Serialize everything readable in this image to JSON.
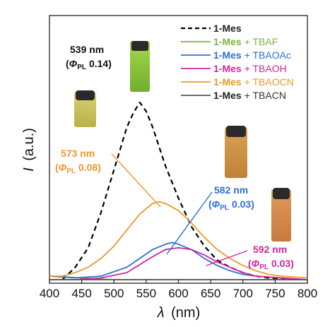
{
  "chart_data": {
    "type": "line",
    "xlabel_symbol": "λ",
    "xlabel_unit": "(nm)",
    "ylabel_symbol": "I",
    "ylabel_unit": "(a.u.)",
    "xlim": [
      400,
      800
    ],
    "x_ticks": [
      400,
      450,
      500,
      550,
      600,
      650,
      700,
      750,
      800
    ],
    "ylim": [
      0,
      1.15
    ],
    "series": [
      {
        "compound": "1-Mes",
        "additive": "",
        "color": "#000000",
        "style": "dashed",
        "x": [
          420,
          440,
          460,
          480,
          500,
          520,
          530,
          540,
          550,
          560,
          580,
          600,
          620,
          640,
          660,
          680,
          700,
          720,
          740,
          760,
          780
        ],
        "y": [
          0.0,
          0.07,
          0.18,
          0.38,
          0.62,
          0.86,
          0.94,
          1.0,
          0.95,
          0.86,
          0.64,
          0.46,
          0.3,
          0.19,
          0.11,
          0.07,
          0.04,
          0.02,
          0.01,
          0.005,
          0.0
        ]
      },
      {
        "compound": "1-Mes",
        "additive": "+ TBAF",
        "color": "#7cb342",
        "style": "solid",
        "x": [
          400,
          500,
          600,
          700,
          800
        ],
        "y": [
          0.02,
          0.0,
          0.0,
          0.0,
          0.0
        ]
      },
      {
        "compound": "1-Mes",
        "additive": "+ TBAOAc",
        "color": "#2e6fd6",
        "style": "solid",
        "x": [
          400,
          440,
          480,
          520,
          540,
          560,
          580,
          590,
          600,
          620,
          640,
          660,
          680,
          700,
          720,
          760,
          800
        ],
        "y": [
          0.02,
          0.01,
          0.02,
          0.07,
          0.12,
          0.17,
          0.2,
          0.21,
          0.2,
          0.17,
          0.12,
          0.08,
          0.05,
          0.03,
          0.02,
          0.01,
          0.0
        ]
      },
      {
        "compound": "1-Mes",
        "additive": "+ TBAOH",
        "color": "#d6249a",
        "style": "solid",
        "x": [
          400,
          440,
          480,
          520,
          560,
          580,
          600,
          620,
          640,
          660,
          680,
          700,
          720,
          760,
          800
        ],
        "y": [
          0.0,
          0.0,
          0.01,
          0.04,
          0.13,
          0.17,
          0.18,
          0.17,
          0.14,
          0.1,
          0.07,
          0.04,
          0.02,
          0.01,
          0.0
        ]
      },
      {
        "compound": "1-Mes",
        "additive": "+ TBAOCN",
        "color": "#f0962e",
        "style": "solid",
        "x": [
          400,
          420,
          440,
          460,
          480,
          500,
          520,
          540,
          560,
          570,
          580,
          600,
          620,
          640,
          660,
          680,
          700,
          720,
          740,
          760,
          800
        ],
        "y": [
          0.02,
          0.02,
          0.04,
          0.07,
          0.12,
          0.19,
          0.28,
          0.37,
          0.43,
          0.44,
          0.43,
          0.39,
          0.32,
          0.24,
          0.17,
          0.12,
          0.08,
          0.05,
          0.03,
          0.02,
          0.01
        ]
      },
      {
        "compound": "1-Mes",
        "additive": "+ TBACN",
        "color": "#555555",
        "style": "solid",
        "x": [
          400,
          600,
          800
        ],
        "y": [
          0.0,
          0.0,
          0.0
        ]
      }
    ],
    "annotations": [
      {
        "line1": "539 nm",
        "phi_sym": "Φ",
        "phi_sub": "PL",
        "phi_val": "0.14",
        "color": "#111111"
      },
      {
        "line1": "573 nm",
        "phi_sym": "Φ",
        "phi_sub": "PL",
        "phi_val": "0.08",
        "color": "#f0962e"
      },
      {
        "line1": "582 nm",
        "phi_sym": "Φ",
        "phi_sub": "PL",
        "phi_val": "0.03",
        "color": "#2e6fd6"
      },
      {
        "line1": "592 nm",
        "phi_sym": "Φ",
        "phi_sub": "PL",
        "phi_val": "0.03",
        "color": "#d6249a"
      }
    ]
  }
}
